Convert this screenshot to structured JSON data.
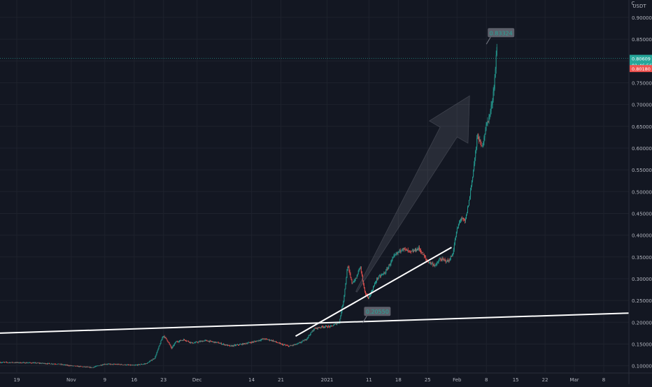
{
  "chart_data": {
    "type": "candlestick",
    "currency_label": "USDT",
    "corner_label": "C",
    "y_ticks": [
      0.1,
      0.15,
      0.2,
      0.25,
      0.3,
      0.35,
      0.4,
      0.45,
      0.5,
      0.55,
      0.6,
      0.65,
      0.7,
      0.75,
      0.8,
      0.85,
      0.9
    ],
    "y_tick_labels": [
      "0.10000",
      "0.15000",
      "0.20000",
      "0.25000",
      "0.30000",
      "0.35000",
      "0.40000",
      "0.45000",
      "0.50000",
      "0.55000",
      "0.60000",
      "0.65000",
      "0.70000",
      "0.75000",
      "0.80000",
      "0.85000",
      "0.90000"
    ],
    "ylim": [
      0.085,
      0.94
    ],
    "x_ticks": [
      "19",
      "Nov",
      "9",
      "16",
      "23",
      "Dec",
      "14",
      "21",
      "2021",
      "11",
      "18",
      "25",
      "Feb",
      "8",
      "15",
      "22",
      "Mar",
      "8"
    ],
    "x_tick_dates": [
      "2020-10-19",
      "2020-11-01",
      "2020-11-09",
      "2020-11-16",
      "2020-11-23",
      "2020-12-01",
      "2020-12-14",
      "2020-12-21",
      "2021-01-01",
      "2021-01-11",
      "2021-01-18",
      "2021-01-25",
      "2021-02-01",
      "2021-02-08",
      "2021-02-15",
      "2021-02-22",
      "2021-03-01",
      "2021-03-08"
    ],
    "xlim": [
      "2020-10-15",
      "2021-03-14"
    ],
    "price_path": [
      [
        "2020-10-15",
        0.108
      ],
      [
        "2020-10-22",
        0.107
      ],
      [
        "2020-10-29",
        0.104
      ],
      [
        "2020-11-01",
        0.1
      ],
      [
        "2020-11-06",
        0.096
      ],
      [
        "2020-11-09",
        0.104
      ],
      [
        "2020-11-13",
        0.103
      ],
      [
        "2020-11-16",
        0.101
      ],
      [
        "2020-11-19",
        0.105
      ],
      [
        "2020-11-21",
        0.118
      ],
      [
        "2020-11-23",
        0.17
      ],
      [
        "2020-11-24",
        0.158
      ],
      [
        "2020-11-25",
        0.14
      ],
      [
        "2020-11-26",
        0.155
      ],
      [
        "2020-11-28",
        0.16
      ],
      [
        "2020-11-30",
        0.152
      ],
      [
        "2020-12-03",
        0.158
      ],
      [
        "2020-12-06",
        0.153
      ],
      [
        "2020-12-09",
        0.145
      ],
      [
        "2020-12-12",
        0.15
      ],
      [
        "2020-12-15",
        0.156
      ],
      [
        "2020-12-17",
        0.162
      ],
      [
        "2020-12-19",
        0.158
      ],
      [
        "2020-12-21",
        0.15
      ],
      [
        "2020-12-23",
        0.145
      ],
      [
        "2020-12-25",
        0.15
      ],
      [
        "2020-12-27",
        0.16
      ],
      [
        "2020-12-29",
        0.185
      ],
      [
        "2020-12-31",
        0.19
      ],
      [
        "2021-01-02",
        0.19
      ],
      [
        "2021-01-04",
        0.2
      ],
      [
        "2021-01-05",
        0.25
      ],
      [
        "2021-01-06",
        0.33
      ],
      [
        "2021-01-07",
        0.29
      ],
      [
        "2021-01-08",
        0.3
      ],
      [
        "2021-01-09",
        0.33
      ],
      [
        "2021-01-10",
        0.27
      ],
      [
        "2021-01-11",
        0.255
      ],
      [
        "2021-01-13",
        0.3
      ],
      [
        "2021-01-15",
        0.315
      ],
      [
        "2021-01-17",
        0.35
      ],
      [
        "2021-01-19",
        0.37
      ],
      [
        "2021-01-21",
        0.36
      ],
      [
        "2021-01-23",
        0.37
      ],
      [
        "2021-01-25",
        0.34
      ],
      [
        "2021-01-27",
        0.33
      ],
      [
        "2021-01-28",
        0.345
      ],
      [
        "2021-01-30",
        0.34
      ],
      [
        "2021-01-31",
        0.355
      ],
      [
        "2021-02-01",
        0.41
      ],
      [
        "2021-02-02",
        0.44
      ],
      [
        "2021-02-03",
        0.43
      ],
      [
        "2021-02-04",
        0.48
      ],
      [
        "2021-02-05",
        0.55
      ],
      [
        "2021-02-06",
        0.63
      ],
      [
        "2021-02-07",
        0.6
      ],
      [
        "2021-02-08",
        0.65
      ],
      [
        "2021-02-09",
        0.68
      ],
      [
        "2021-02-09T12:00",
        0.71
      ],
      [
        "2021-02-10",
        0.75
      ],
      [
        "2021-02-10T14:00",
        0.833
      ]
    ],
    "current_price": {
      "value": 0.80609,
      "label": "0.80609",
      "countdown": "01:46:56"
    },
    "prev_price": {
      "value": 0.8018,
      "label": "0.80180"
    },
    "annotations": [
      {
        "label": "0.83324",
        "date": "2021-02-11T12:00",
        "price": 0.865
      },
      {
        "label": "0.20550",
        "date": "2021-01-13",
        "price": 0.225
      }
    ],
    "trendlines": [
      {
        "from_date": "2020-10-15",
        "from_price": 0.175,
        "to_date": "2021-03-14",
        "to_price": 0.221
      },
      {
        "from_date": "2020-12-24T12:00",
        "from_price": 0.168,
        "to_date": "2021-01-30T16:48",
        "to_price": 0.372
      }
    ],
    "arrow": {
      "from_date": "2021-01-08",
      "from_price": 0.27,
      "to_date": "2021-02-04",
      "to_price": 0.72
    },
    "colors": {
      "up": "#26a69a",
      "down": "#ef5350",
      "background": "#131722",
      "grid": "#1e222d",
      "text": "#b2b5be",
      "line": "#ffffff"
    }
  }
}
